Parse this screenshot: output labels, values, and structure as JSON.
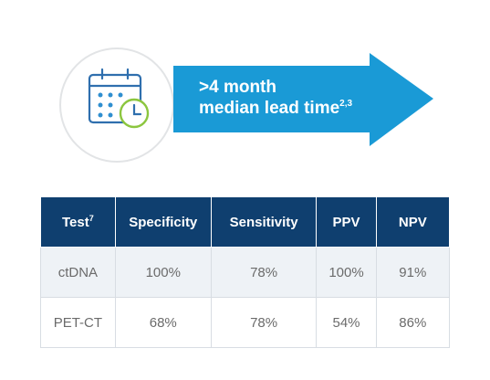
{
  "callout": {
    "line1": ">4 month",
    "line2": "median lead time",
    "line2_footnote": "2,3"
  },
  "table": {
    "header": [
      "Test",
      "Specificity",
      "Sensitivity",
      "PPV",
      "NPV"
    ],
    "header_footnote": "7",
    "rows": [
      [
        "ctDNA",
        "100%",
        "78%",
        "100%",
        "91%"
      ],
      [
        "PET-CT",
        "68%",
        "78%",
        "54%",
        "86%"
      ]
    ]
  }
}
